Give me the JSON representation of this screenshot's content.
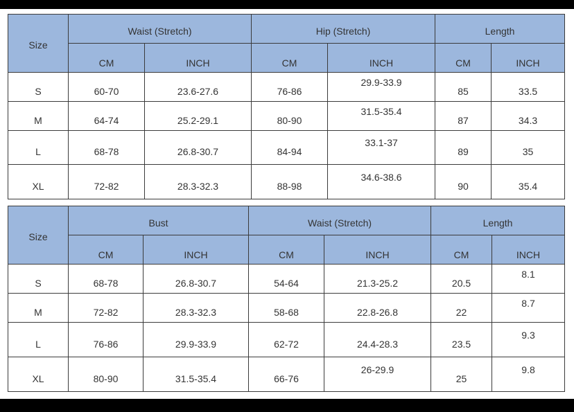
{
  "tables": [
    {
      "size_label": "Size",
      "groups": [
        "Waist (Stretch)",
        "Hip (Stretch)",
        "Length"
      ],
      "units": [
        "CM",
        "INCH",
        "CM",
        "INCH",
        "CM",
        "INCH"
      ],
      "rows": [
        {
          "size": "S",
          "cells": [
            "60-70",
            "23.6-27.6",
            "76-86",
            "29.9-33.9",
            "85",
            "33.5"
          ]
        },
        {
          "size": "M",
          "cells": [
            "64-74",
            "25.2-29.1",
            "80-90",
            "31.5-35.4",
            "87",
            "34.3"
          ]
        },
        {
          "size": "L",
          "cells": [
            "68-78",
            "26.8-30.7",
            "84-94",
            "33.1-37",
            "89",
            "35"
          ]
        },
        {
          "size": "XL",
          "cells": [
            "72-82",
            "28.3-32.3",
            "88-98",
            "34.6-38.6",
            "90",
            "35.4"
          ]
        }
      ]
    },
    {
      "size_label": "Size",
      "groups": [
        "Bust",
        "Waist (Stretch)",
        "Length"
      ],
      "units": [
        "CM",
        "INCH",
        "CM",
        "INCH",
        "CM",
        "INCH"
      ],
      "rows": [
        {
          "size": "S",
          "cells": [
            "68-78",
            "26.8-30.7",
            "54-64",
            "21.3-25.2",
            "20.5",
            "8.1"
          ]
        },
        {
          "size": "M",
          "cells": [
            "72-82",
            "28.3-32.3",
            "58-68",
            "22.8-26.8",
            "22",
            "8.7"
          ]
        },
        {
          "size": "L",
          "cells": [
            "76-86",
            "29.9-33.9",
            "62-72",
            "24.4-28.3",
            "23.5",
            "9.3"
          ]
        },
        {
          "size": "XL",
          "cells": [
            "80-90",
            "31.5-35.4",
            "66-76",
            "26-29.9",
            "25",
            "9.8"
          ]
        }
      ]
    }
  ],
  "colors": {
    "header_fill": "#9cb7dd",
    "border": "#3a3a3a",
    "text": "#333333"
  }
}
